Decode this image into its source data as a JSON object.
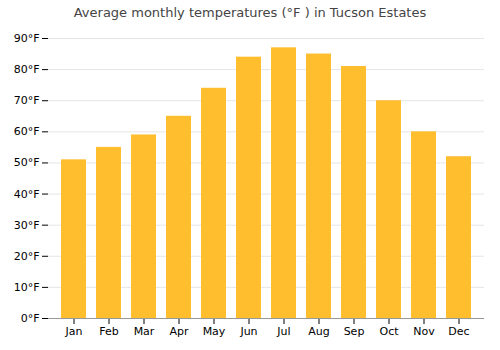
{
  "chart_data": {
    "type": "bar",
    "title": "Average monthly temperatures (°F ) in Tucson Estates",
    "categories": [
      "Jan",
      "Feb",
      "Mar",
      "Apr",
      "May",
      "Jun",
      "Jul",
      "Aug",
      "Sep",
      "Oct",
      "Nov",
      "Dec"
    ],
    "values": [
      51,
      55,
      59,
      65,
      74,
      84,
      87,
      85,
      81,
      70,
      60,
      52
    ],
    "color": "#FFBE2D",
    "ylim": [
      0,
      90
    ],
    "yticks": [
      {
        "value": 0,
        "label": "0°F"
      },
      {
        "value": 10,
        "label": "10°F"
      },
      {
        "value": 20,
        "label": "20°F"
      },
      {
        "value": 30,
        "label": "30°F"
      },
      {
        "value": 40,
        "label": "40°F"
      },
      {
        "value": 50,
        "label": "50°F"
      },
      {
        "value": 60,
        "label": "60°F"
      },
      {
        "value": 70,
        "label": "70°F"
      },
      {
        "value": 80,
        "label": "80°F"
      },
      {
        "value": 90,
        "label": "90°F"
      }
    ],
    "grid": true
  }
}
